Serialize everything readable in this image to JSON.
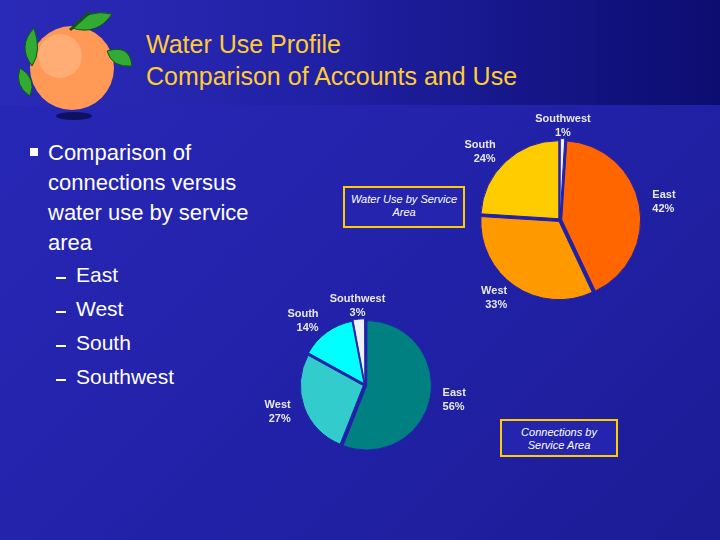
{
  "slide": {
    "title": [
      "Water Use Profile",
      "Comparison of Accounts and Use"
    ],
    "bullet": "Comparison of connections versus water use by service area",
    "sub_bullets": [
      "East",
      "West",
      "South",
      "Southwest"
    ]
  },
  "chart_data": [
    {
      "type": "pie",
      "title": "Water Use by Service Area",
      "categories": [
        "Southwest",
        "East",
        "West",
        "South"
      ],
      "values": [
        1,
        42,
        33,
        24
      ],
      "value_labels": [
        "1%",
        "42%",
        "33%",
        "24%"
      ],
      "colors": [
        "#F0F0F8",
        "#FF6600",
        "#FF9900",
        "#FFCC00"
      ],
      "data_labels": true
    },
    {
      "type": "pie",
      "title": "Connections by Service Area",
      "categories": [
        "East",
        "West",
        "South",
        "Southwest"
      ],
      "values": [
        56,
        27,
        14,
        3
      ],
      "value_labels": [
        "56%",
        "27%",
        "14%",
        "3%"
      ],
      "colors": [
        "#008080",
        "#33CCCC",
        "#00FFFF",
        "#F0F0F8"
      ],
      "data_labels": true
    }
  ]
}
